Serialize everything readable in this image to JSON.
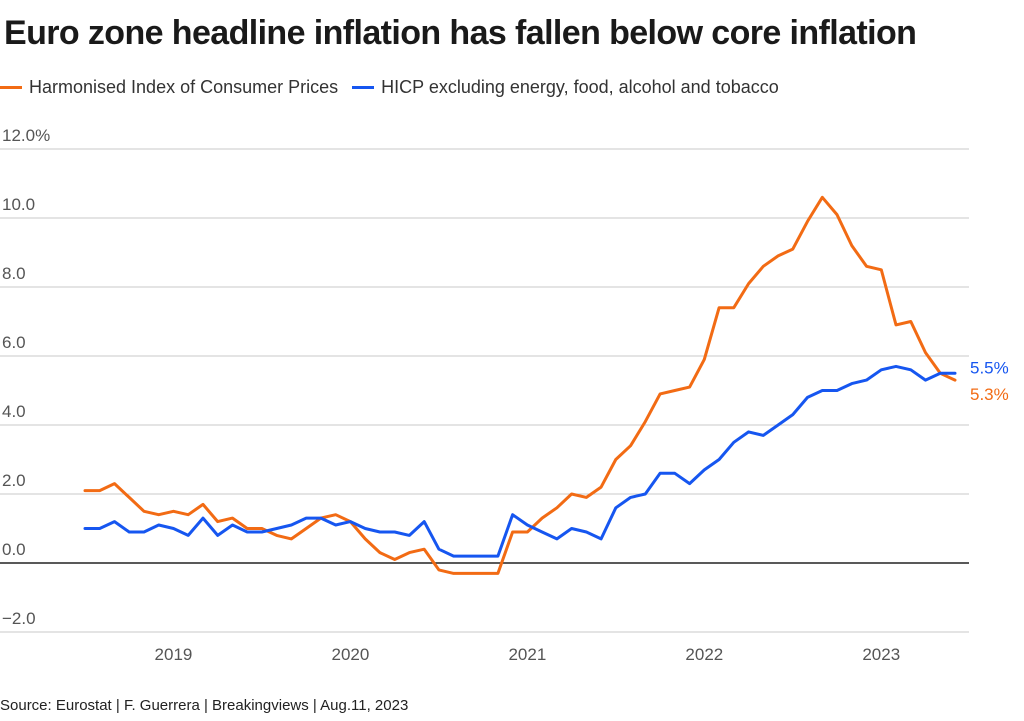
{
  "title": "Euro zone headline inflation has fallen below core inflation",
  "source": "Source: Eurostat | F. Guerrera | Breakingviews | Aug.11, 2023",
  "colors": {
    "headline": "#f26b14",
    "core": "#1656f0",
    "grid": "#c8c8c8",
    "zero": "#222222",
    "tick": "#555555"
  },
  "chart_data": {
    "type": "line",
    "title": "Euro zone headline inflation has fallen below core inflation",
    "xlabel": "",
    "ylabel": "",
    "ylim": [
      -2,
      12
    ],
    "yticks": [
      {
        "value": 12,
        "label": "12.0%"
      },
      {
        "value": 10,
        "label": "10.0"
      },
      {
        "value": 8,
        "label": "8.0"
      },
      {
        "value": 6,
        "label": "6.0"
      },
      {
        "value": 4,
        "label": "4.0"
      },
      {
        "value": 2,
        "label": "2.0"
      },
      {
        "value": 0,
        "label": "0.0"
      },
      {
        "value": -2,
        "label": "−2.0"
      }
    ],
    "xticks": [
      {
        "label": "2019",
        "month": "2019-02"
      },
      {
        "label": "2020",
        "month": "2020-02"
      },
      {
        "label": "2021",
        "month": "2021-02"
      },
      {
        "label": "2022",
        "month": "2022-02"
      },
      {
        "label": "2023",
        "month": "2023-02"
      }
    ],
    "x_start": "2018-08",
    "x_end": "2023-07",
    "grid": true,
    "legend_position": "top-left",
    "series": [
      {
        "name": "Harmonised Index of Consumer Prices",
        "color": "#f26b14",
        "end_label": "5.3%",
        "values": [
          2.1,
          2.1,
          2.3,
          1.9,
          1.5,
          1.4,
          1.5,
          1.4,
          1.7,
          1.2,
          1.3,
          1.0,
          1.0,
          0.8,
          0.7,
          1.0,
          1.3,
          1.4,
          1.2,
          0.7,
          0.3,
          0.1,
          0.3,
          0.4,
          -0.2,
          -0.3,
          -0.3,
          -0.3,
          -0.3,
          0.9,
          0.9,
          1.3,
          1.6,
          2.0,
          1.9,
          2.2,
          3.0,
          3.4,
          4.1,
          4.9,
          5.0,
          5.1,
          5.9,
          7.4,
          7.4,
          8.1,
          8.6,
          8.9,
          9.1,
          9.9,
          10.6,
          10.1,
          9.2,
          8.6,
          8.5,
          6.9,
          7.0,
          6.1,
          5.5,
          5.3
        ]
      },
      {
        "name": "HICP excluding energy, food, alcohol and tobacco",
        "color": "#1656f0",
        "end_label": "5.5%",
        "values": [
          1.0,
          1.0,
          1.2,
          0.9,
          0.9,
          1.1,
          1.0,
          0.8,
          1.3,
          0.8,
          1.1,
          0.9,
          0.9,
          1.0,
          1.1,
          1.3,
          1.3,
          1.1,
          1.2,
          1.0,
          0.9,
          0.9,
          0.8,
          1.2,
          0.4,
          0.2,
          0.2,
          0.2,
          0.2,
          1.4,
          1.1,
          0.9,
          0.7,
          1.0,
          0.9,
          0.7,
          1.6,
          1.9,
          2.0,
          2.6,
          2.6,
          2.3,
          2.7,
          3.0,
          3.5,
          3.8,
          3.7,
          4.0,
          4.3,
          4.8,
          5.0,
          5.0,
          5.2,
          5.3,
          5.6,
          5.7,
          5.6,
          5.3,
          5.5,
          5.5
        ]
      }
    ]
  }
}
